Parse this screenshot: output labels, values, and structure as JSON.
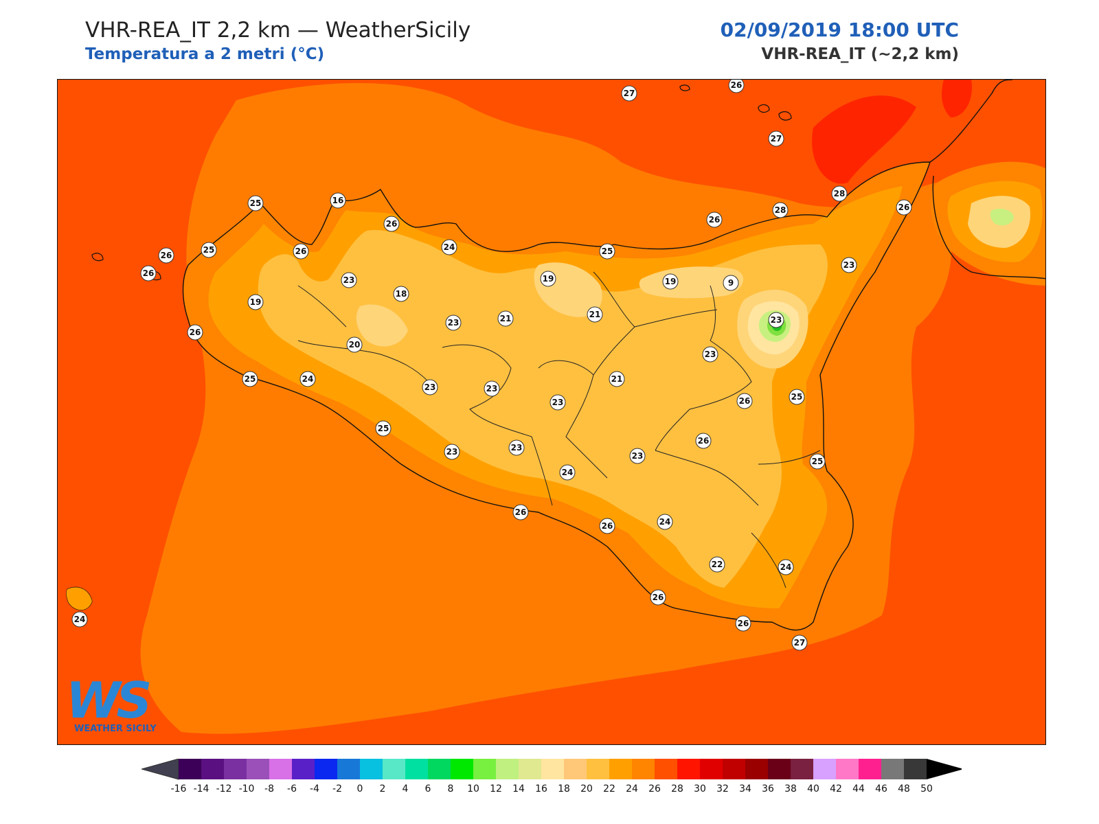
{
  "header": {
    "title": "VHR-REA_IT 2,2 km — WeatherSicily",
    "subtitle": "Temperatura a 2 metri (°C)",
    "datetime": "02/09/2019 18:00 UTC",
    "model": "VHR-REA_IT (~2,2 km)"
  },
  "logo": {
    "letters": "WS",
    "name": "WEATHER SICILY"
  },
  "colors": {
    "sea": "#ff5000",
    "land_base": "#ff8400",
    "land_22": "#ffa000",
    "land_20": "#ffc040",
    "land_18": "#ffd57a",
    "land_16": "#ffe5a0",
    "land_12": "#c8f080",
    "land_10": "#80e040",
    "land_8": "#20c020",
    "accent_blue": "#1f5fb8"
  },
  "stations": [
    {
      "value": "27"
    },
    {
      "value": "26"
    },
    {
      "value": "27"
    },
    {
      "value": "28"
    },
    {
      "value": "28"
    },
    {
      "value": "26"
    },
    {
      "value": "26"
    },
    {
      "value": "25"
    },
    {
      "value": "26"
    },
    {
      "value": "23"
    },
    {
      "value": "25"
    },
    {
      "value": "26"
    },
    {
      "value": "26"
    },
    {
      "value": "26"
    },
    {
      "value": "24"
    },
    {
      "value": "25"
    },
    {
      "value": "16"
    },
    {
      "value": "19"
    },
    {
      "value": "9"
    },
    {
      "value": "23"
    },
    {
      "value": "23"
    },
    {
      "value": "19"
    },
    {
      "value": "18"
    },
    {
      "value": "19"
    },
    {
      "value": "21"
    },
    {
      "value": "21"
    },
    {
      "value": "23"
    },
    {
      "value": "23"
    },
    {
      "value": "20"
    },
    {
      "value": "26"
    },
    {
      "value": "25"
    },
    {
      "value": "24"
    },
    {
      "value": "23"
    },
    {
      "value": "23"
    },
    {
      "value": "21"
    },
    {
      "value": "23"
    },
    {
      "value": "26"
    },
    {
      "value": "25"
    },
    {
      "value": "25"
    },
    {
      "value": "25"
    },
    {
      "value": "23"
    },
    {
      "value": "23"
    },
    {
      "value": "24"
    },
    {
      "value": "26"
    },
    {
      "value": "26"
    },
    {
      "value": "24"
    },
    {
      "value": "23"
    },
    {
      "value": "26"
    },
    {
      "value": "22"
    },
    {
      "value": "24"
    },
    {
      "value": "26"
    },
    {
      "value": "26"
    },
    {
      "value": "27"
    },
    {
      "value": "24"
    }
  ],
  "colorbar": {
    "colors": [
      "#3d0058",
      "#5a1080",
      "#7a30a0",
      "#9a50b8",
      "#d870e8",
      "#5a20c8",
      "#0a28f0",
      "#1878d8",
      "#08c0e0",
      "#58e8c8",
      "#00e0a0",
      "#00d860",
      "#00e800",
      "#78f040",
      "#c0f080",
      "#e0e890",
      "#ffe5a0",
      "#ffc878",
      "#ffc040",
      "#ffa000",
      "#ff8400",
      "#ff5000",
      "#ff1400",
      "#e00000",
      "#c00000",
      "#9a0000",
      "#6a0018",
      "#7a2040",
      "#d8a0ff",
      "#ff78c8",
      "#ff2090",
      "#787878",
      "#383838"
    ],
    "under_color": "#404050",
    "over_color": "#000000",
    "labels": [
      "-16",
      "-14",
      "-12",
      "-10",
      "-8",
      "-6",
      "-4",
      "-2",
      "0",
      "2",
      "4",
      "6",
      "8",
      "10",
      "12",
      "14",
      "16",
      "18",
      "20",
      "22",
      "24",
      "26",
      "28",
      "30",
      "32",
      "34",
      "36",
      "38",
      "40",
      "42",
      "44",
      "46",
      "48",
      "50"
    ]
  }
}
